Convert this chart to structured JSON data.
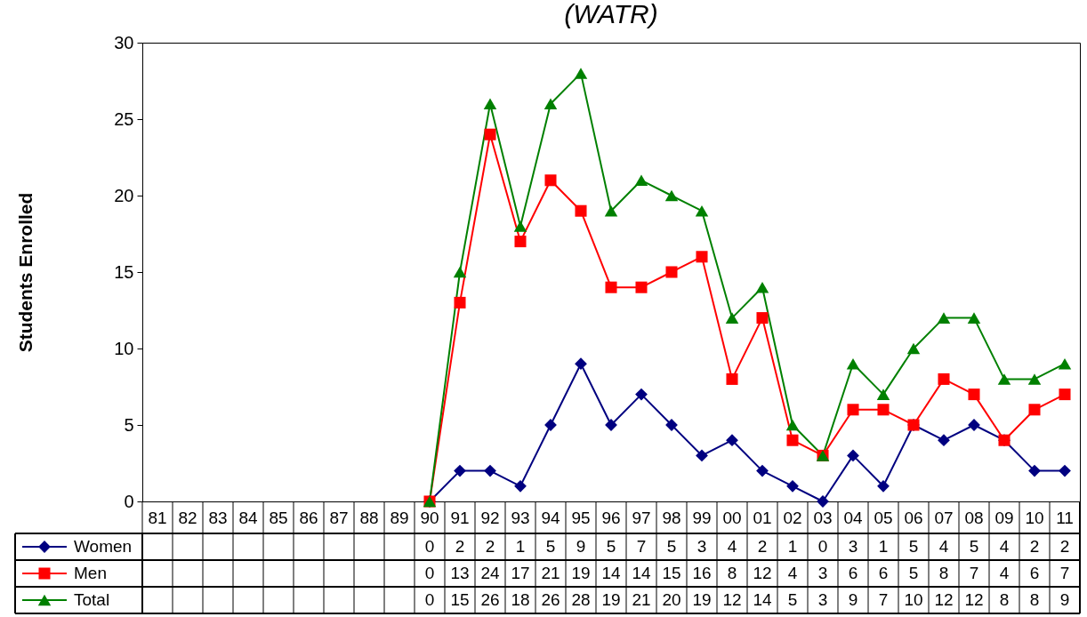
{
  "chart_data": {
    "type": "line",
    "title": "(WATR)",
    "ylabel": "Students Enrolled",
    "categories": [
      "81",
      "82",
      "83",
      "84",
      "85",
      "86",
      "87",
      "88",
      "89",
      "90",
      "91",
      "92",
      "93",
      "94",
      "95",
      "96",
      "97",
      "98",
      "99",
      "00",
      "01",
      "02",
      "03",
      "04",
      "05",
      "06",
      "07",
      "08",
      "09",
      "10",
      "11"
    ],
    "series": [
      {
        "name": "Women",
        "color": "#000080",
        "marker": "diamond",
        "values": [
          null,
          null,
          null,
          null,
          null,
          null,
          null,
          null,
          null,
          0,
          2,
          2,
          1,
          5,
          9,
          5,
          7,
          5,
          3,
          4,
          2,
          1,
          0,
          3,
          1,
          5,
          4,
          5,
          4,
          2,
          2
        ]
      },
      {
        "name": "Men",
        "color": "#ff0000",
        "marker": "square",
        "values": [
          null,
          null,
          null,
          null,
          null,
          null,
          null,
          null,
          null,
          0,
          13,
          24,
          17,
          21,
          19,
          14,
          14,
          15,
          16,
          8,
          12,
          4,
          3,
          6,
          6,
          5,
          8,
          7,
          4,
          6,
          7
        ]
      },
      {
        "name": "Total",
        "color": "#008000",
        "marker": "triangle",
        "values": [
          null,
          null,
          null,
          null,
          null,
          null,
          null,
          null,
          null,
          0,
          15,
          26,
          18,
          26,
          28,
          19,
          21,
          20,
          19,
          12,
          14,
          5,
          3,
          9,
          7,
          10,
          12,
          12,
          8,
          8,
          9
        ]
      }
    ],
    "ylim": [
      0,
      30
    ],
    "yticks": [
      0,
      5,
      10,
      15,
      20,
      25,
      30
    ],
    "grid": false,
    "legend": "bottom left",
    "data_labels": true,
    "line_style": "solid"
  }
}
